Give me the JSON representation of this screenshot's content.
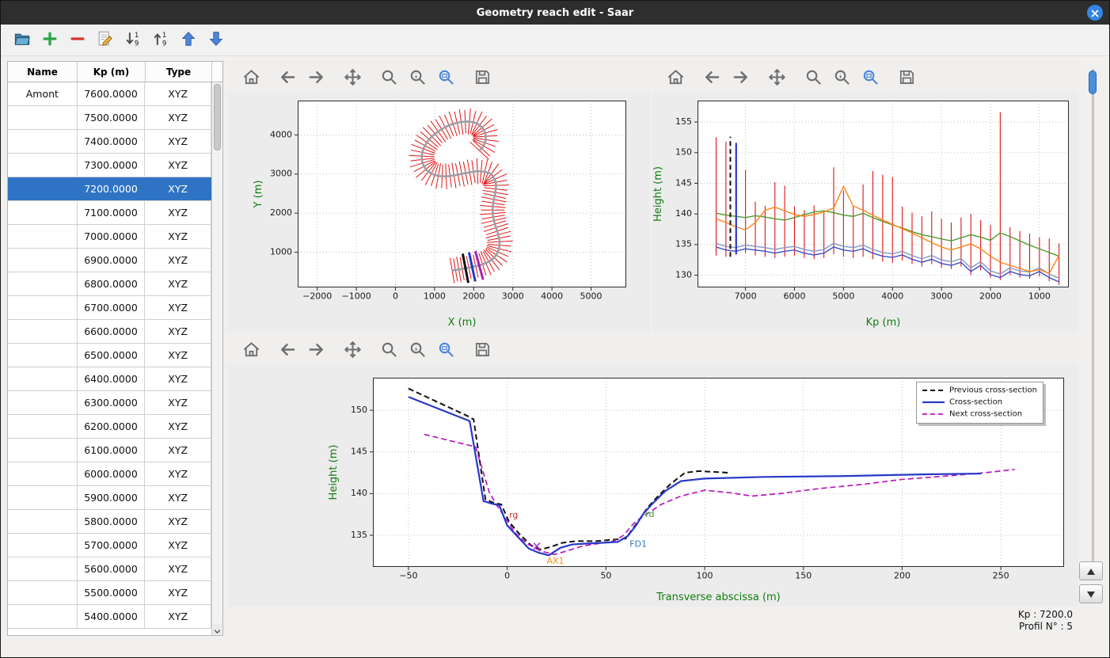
{
  "window": {
    "title": "Geometry reach edit - Saar"
  },
  "colors": {
    "titlebar": "#2e2e2e",
    "close_button": "#3584e4",
    "selection": "#2f74c4",
    "axis_label_green": "#0f7d0f",
    "cross_section_red": "#dd1515"
  },
  "toolbar": {
    "buttons": [
      {
        "name": "open-geometry",
        "icon": "folder"
      },
      {
        "name": "add-section",
        "icon": "plus"
      },
      {
        "name": "delete-section",
        "icon": "minus"
      },
      {
        "name": "edit-section",
        "icon": "edit"
      },
      {
        "name": "sort-ascending",
        "icon": "sort-asc"
      },
      {
        "name": "sort-descending",
        "icon": "sort-desc"
      },
      {
        "name": "move-up",
        "icon": "arrow-up"
      },
      {
        "name": "move-down",
        "icon": "arrow-down"
      }
    ]
  },
  "plot_toolbar": {
    "icons": [
      "home",
      "back",
      "forward",
      "pan",
      "zoom",
      "zoom-info",
      "zoom-rect",
      "save"
    ],
    "gaps": [
      0,
      2,
      3,
      6
    ]
  },
  "table": {
    "columns": [
      "Name",
      "Kp (m)",
      "Type"
    ],
    "selected_kp": "7200.0000",
    "rows": [
      {
        "name": "Amont",
        "kp": "7600.0000",
        "type": "XYZ"
      },
      {
        "name": "",
        "kp": "7500.0000",
        "type": "XYZ"
      },
      {
        "name": "",
        "kp": "7400.0000",
        "type": "XYZ"
      },
      {
        "name": "",
        "kp": "7300.0000",
        "type": "XYZ"
      },
      {
        "name": "",
        "kp": "7200.0000",
        "type": "XYZ"
      },
      {
        "name": "",
        "kp": "7100.0000",
        "type": "XYZ"
      },
      {
        "name": "",
        "kp": "7000.0000",
        "type": "XYZ"
      },
      {
        "name": "",
        "kp": "6900.0000",
        "type": "XYZ"
      },
      {
        "name": "",
        "kp": "6800.0000",
        "type": "XYZ"
      },
      {
        "name": "",
        "kp": "6700.0000",
        "type": "XYZ"
      },
      {
        "name": "",
        "kp": "6600.0000",
        "type": "XYZ"
      },
      {
        "name": "",
        "kp": "6500.0000",
        "type": "XYZ"
      },
      {
        "name": "",
        "kp": "6400.0000",
        "type": "XYZ"
      },
      {
        "name": "",
        "kp": "6300.0000",
        "type": "XYZ"
      },
      {
        "name": "",
        "kp": "6200.0000",
        "type": "XYZ"
      },
      {
        "name": "",
        "kp": "6100.0000",
        "type": "XYZ"
      },
      {
        "name": "",
        "kp": "6000.0000",
        "type": "XYZ"
      },
      {
        "name": "",
        "kp": "5900.0000",
        "type": "XYZ"
      },
      {
        "name": "",
        "kp": "5800.0000",
        "type": "XYZ"
      },
      {
        "name": "",
        "kp": "5700.0000",
        "type": "XYZ"
      },
      {
        "name": "",
        "kp": "5600.0000",
        "type": "XYZ"
      },
      {
        "name": "",
        "kp": "5500.0000",
        "type": "XYZ"
      },
      {
        "name": "",
        "kp": "5400.0000",
        "type": "XYZ"
      }
    ]
  },
  "status": {
    "kp": "Kp : 7200.0",
    "profil": "Profil N° : 5"
  },
  "chart_data": [
    {
      "id": "plan-view",
      "type": "line",
      "title": "",
      "xlabel": "X (m)",
      "ylabel": "Y (m)",
      "xlim": [
        -2500,
        5900
      ],
      "ylim": [
        100,
        4880
      ],
      "xticks": [
        -2000,
        -1000,
        0,
        1000,
        2000,
        3000,
        4000,
        5000
      ],
      "yticks": [
        1000,
        2000,
        3000,
        4000
      ],
      "centerline_color": "#9aa0a8",
      "tick_color": "#e11414",
      "tick_half_length": 330,
      "centerline": [
        [
          1450,
          530
        ],
        [
          1620,
          560
        ],
        [
          1790,
          590
        ],
        [
          1960,
          625
        ],
        [
          2140,
          665
        ],
        [
          2310,
          720
        ],
        [
          2460,
          805
        ],
        [
          2580,
          930
        ],
        [
          2650,
          1090
        ],
        [
          2665,
          1270
        ],
        [
          2630,
          1450
        ],
        [
          2570,
          1630
        ],
        [
          2515,
          1810
        ],
        [
          2485,
          1990
        ],
        [
          2485,
          2170
        ],
        [
          2515,
          2350
        ],
        [
          2555,
          2530
        ],
        [
          2575,
          2710
        ],
        [
          2545,
          2870
        ],
        [
          2445,
          3000
        ],
        [
          2285,
          3060
        ],
        [
          2095,
          3075
        ],
        [
          1895,
          3045
        ],
        [
          1695,
          3005
        ],
        [
          1495,
          2965
        ],
        [
          1295,
          2940
        ],
        [
          1095,
          2950
        ],
        [
          915,
          3010
        ],
        [
          775,
          3120
        ],
        [
          690,
          3280
        ],
        [
          670,
          3460
        ],
        [
          710,
          3645
        ],
        [
          800,
          3810
        ],
        [
          930,
          3960
        ],
        [
          1090,
          4090
        ],
        [
          1270,
          4200
        ],
        [
          1470,
          4285
        ],
        [
          1680,
          4335
        ],
        [
          1890,
          4345
        ],
        [
          2080,
          4300
        ],
        [
          2220,
          4195
        ],
        [
          2300,
          4050
        ],
        [
          2310,
          3880
        ],
        [
          2255,
          3720
        ],
        [
          2145,
          3600
        ]
      ],
      "section_markers": [
        {
          "name": "previous-section",
          "index": 2,
          "color": "#111111"
        },
        {
          "name": "current-section",
          "index": 3,
          "color": "#2738c8"
        },
        {
          "name": "next-section",
          "index": 4,
          "color": "#aa22aa"
        }
      ]
    },
    {
      "id": "long-profile",
      "type": "line",
      "title": "",
      "xlabel": "Kp (m)",
      "ylabel": "Height (m)",
      "x_reversed": true,
      "xlim": [
        7980,
        400
      ],
      "ylim": [
        128,
        158.5
      ],
      "xticks": [
        7000,
        6000,
        5000,
        4000,
        3000,
        2000,
        1000
      ],
      "yticks": [
        130,
        135,
        140,
        145,
        150,
        155
      ],
      "kp": [
        7600,
        7400,
        7200,
        7000,
        6800,
        6600,
        6400,
        6200,
        6000,
        5800,
        5600,
        5400,
        5200,
        5000,
        4800,
        4600,
        4400,
        4200,
        4000,
        3800,
        3600,
        3400,
        3200,
        3000,
        2800,
        2600,
        2400,
        2200,
        2000,
        1800,
        1600,
        1400,
        1200,
        1000,
        800,
        600
      ],
      "verticals_color": "#dd1515",
      "verticals_top": [
        152.5,
        151.8,
        151.5,
        147.2,
        142.0,
        141.3,
        145.2,
        144.6,
        141.2,
        140.6,
        141.4,
        140.2,
        147.6,
        143.8,
        141.2,
        144.8,
        147.0,
        146.4,
        146.0,
        141.2,
        140.2,
        139.6,
        140.4,
        139.2,
        138.6,
        139.4,
        140.0,
        139.0,
        138.2,
        156.6,
        137.8,
        137.2,
        136.8,
        136.2,
        136.0,
        135.2
      ],
      "verticals_bottom": [
        133.2,
        133.0,
        133.4,
        133.6,
        133.2,
        133.0,
        132.8,
        133.0,
        133.2,
        132.8,
        132.6,
        132.8,
        133.4,
        133.0,
        132.8,
        133.0,
        132.6,
        132.2,
        132.0,
        132.4,
        131.8,
        131.4,
        131.8,
        131.2,
        131.0,
        131.4,
        130.0,
        130.8,
        129.6,
        129.2,
        130.0,
        129.6,
        129.4,
        129.8,
        129.0,
        128.4
      ],
      "series": [
        {
          "name": "water-line",
          "color": "#8099c6",
          "values": [
            135.2,
            134.7,
            134.5,
            134.9,
            134.7,
            134.5,
            134.2,
            134.5,
            134.7,
            134.2,
            133.9,
            134.2,
            135.2,
            134.7,
            134.5,
            134.9,
            134.2,
            133.7,
            133.5,
            133.9,
            133.2,
            132.7,
            133.2,
            132.5,
            132.2,
            132.7,
            131.2,
            132.2,
            130.7,
            130.2,
            131.2,
            130.7,
            130.5,
            131.2,
            130.2,
            129.5
          ]
        },
        {
          "name": "bed-line",
          "color": "#3a50c8",
          "values": [
            134.6,
            134.1,
            133.9,
            134.3,
            134.1,
            133.9,
            133.6,
            133.9,
            134.1,
            133.6,
            133.3,
            133.6,
            134.6,
            134.1,
            133.9,
            134.3,
            133.6,
            133.1,
            132.9,
            133.3,
            132.6,
            132.1,
            132.6,
            131.9,
            131.6,
            132.1,
            130.6,
            131.6,
            130.1,
            129.6,
            130.6,
            130.1,
            129.9,
            130.6,
            129.6,
            128.9
          ]
        },
        {
          "name": "left-bank-line",
          "color": "#4f9a2e",
          "values": [
            140.1,
            139.8,
            139.6,
            139.4,
            139.7,
            139.5,
            139.2,
            139.0,
            139.4,
            139.9,
            140.3,
            140.5,
            140.2,
            139.8,
            139.6,
            140.1,
            139.4,
            138.8,
            138.2,
            137.7,
            137.1,
            136.6,
            136.3,
            135.9,
            135.6,
            136.1,
            136.6,
            136.2,
            135.7,
            136.9,
            136.3,
            135.6,
            134.9,
            134.3,
            133.7,
            133.1
          ]
        },
        {
          "name": "right-bank-line",
          "color": "#ff8419",
          "values": [
            139.2,
            138.6,
            137.9,
            137.4,
            138.6,
            140.6,
            141.1,
            140.5,
            139.9,
            139.6,
            139.9,
            140.3,
            141.0,
            144.5,
            141.3,
            140.6,
            139.8,
            139.0,
            138.3,
            137.6,
            136.9,
            136.1,
            135.3,
            134.6,
            134.1,
            134.6,
            135.1,
            134.3,
            133.1,
            132.1,
            131.6,
            131.1,
            130.6,
            130.9,
            130.3,
            133.2
          ]
        }
      ],
      "markers": [
        {
          "name": "previous-section",
          "kp": 7310,
          "bottom": 133.0,
          "top": 152.6,
          "color": "#111111",
          "dash": true
        },
        {
          "name": "current-section",
          "kp": 7190,
          "bottom": 133.4,
          "top": 151.6,
          "color": "#2738c8",
          "dash": false
        }
      ]
    },
    {
      "id": "cross-section",
      "type": "line",
      "title": "",
      "xlabel": "Transverse abscissa (m)",
      "ylabel": "Height (m)",
      "xlim": [
        -68,
        282
      ],
      "ylim": [
        131.2,
        153.9
      ],
      "xticks": [
        -50,
        0,
        50,
        100,
        150,
        200,
        250
      ],
      "yticks": [
        135,
        140,
        145,
        150
      ],
      "legend": [
        "Previous cross-section",
        "Cross-section",
        "Next cross-section"
      ],
      "series": [
        {
          "name": "previous",
          "color": "#111111",
          "dash": [
            7,
            4
          ],
          "width": 2,
          "points": [
            [
              -50,
              152.6
            ],
            [
              -20,
              149.3
            ],
            [
              -17,
              148.9
            ],
            [
              -11,
              139.3
            ],
            [
              -7,
              138.9
            ],
            [
              -3,
              138.7
            ],
            [
              1,
              136.6
            ],
            [
              6,
              135.2
            ],
            [
              12,
              133.8
            ],
            [
              17,
              133.3
            ],
            [
              22,
              133.6
            ],
            [
              28,
              134.1
            ],
            [
              35,
              134.3
            ],
            [
              45,
              134.3
            ],
            [
              55,
              134.5
            ],
            [
              60,
              134.6
            ],
            [
              63,
              135.6
            ],
            [
              67,
              136.9
            ],
            [
              71,
              138.3
            ],
            [
              76,
              139.6
            ],
            [
              83,
              141.2
            ],
            [
              90,
              142.5
            ],
            [
              97,
              142.7
            ],
            [
              105,
              142.6
            ],
            [
              112,
              142.5
            ]
          ]
        },
        {
          "name": "next",
          "color": "#bb17bb",
          "dash": [
            7,
            4
          ],
          "width": 1.7,
          "points": [
            [
              -42,
              147.1
            ],
            [
              -16,
              145.6
            ],
            [
              -9,
              140.1
            ],
            [
              -5,
              138.5
            ],
            [
              -1,
              137.1
            ],
            [
              4,
              135.3
            ],
            [
              10,
              134.0
            ],
            [
              17,
              133.1
            ],
            [
              24,
              132.7
            ],
            [
              30,
              133.1
            ],
            [
              38,
              133.7
            ],
            [
              46,
              134.0
            ],
            [
              54,
              134.3
            ],
            [
              59,
              135.0
            ],
            [
              64,
              136.4
            ],
            [
              69,
              137.3
            ],
            [
              78,
              138.7
            ],
            [
              88,
              139.7
            ],
            [
              100,
              140.4
            ],
            [
              113,
              140.1
            ],
            [
              124,
              139.7
            ],
            [
              138,
              140.0
            ],
            [
              158,
              140.6
            ],
            [
              180,
              141.1
            ],
            [
              200,
              141.7
            ],
            [
              222,
              142.1
            ],
            [
              242,
              142.5
            ],
            [
              257,
              142.9
            ]
          ]
        },
        {
          "name": "current",
          "color": "#2738c8",
          "dash": null,
          "width": 2.2,
          "points": [
            [
              -50,
              151.6
            ],
            [
              -19,
              148.7
            ],
            [
              -12,
              139.1
            ],
            [
              -8,
              138.8
            ],
            [
              -4,
              138.6
            ],
            [
              0,
              136.2
            ],
            [
              5,
              134.9
            ],
            [
              11,
              133.4
            ],
            [
              16,
              132.9
            ],
            [
              21,
              132.6
            ],
            [
              27,
              133.5
            ],
            [
              33,
              133.9
            ],
            [
              40,
              134.0
            ],
            [
              48,
              134.1
            ],
            [
              56,
              134.2
            ],
            [
              61,
              134.9
            ],
            [
              65,
              136.1
            ],
            [
              69,
              137.6
            ],
            [
              74,
              138.9
            ],
            [
              80,
              140.3
            ],
            [
              88,
              141.5
            ],
            [
              100,
              141.8
            ],
            [
              130,
              142.0
            ],
            [
              170,
              142.1
            ],
            [
              210,
              142.3
            ],
            [
              240,
              142.4
            ]
          ]
        }
      ],
      "annotations": [
        {
          "text": "rg",
          "x": 1,
          "y": 137.1,
          "color": "#cc2a2a"
        },
        {
          "text": "AX1",
          "x": 20,
          "y": 131.6,
          "color": "#ff8c1a"
        },
        {
          "text": "FD1",
          "x": 62,
          "y": 133.6,
          "color": "#2d7bbf"
        },
        {
          "text": "rd",
          "x": 70,
          "y": 137.2,
          "color": "#3f8f2f"
        }
      ],
      "point_marker": {
        "x": 15,
        "y": 133.7,
        "color": "#9b3fd4"
      }
    }
  ]
}
